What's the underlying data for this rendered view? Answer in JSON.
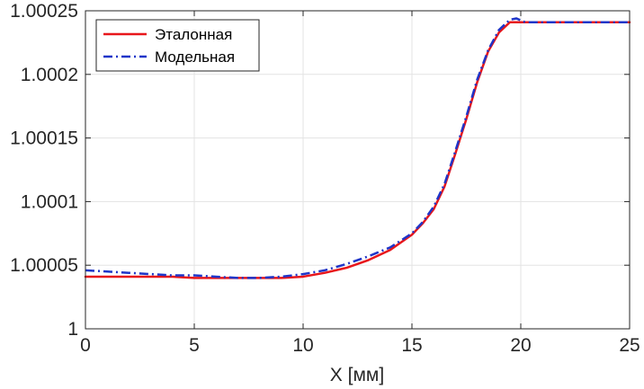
{
  "chart_data": {
    "type": "line",
    "title": "",
    "xlabel": "X [мм]",
    "ylabel": "",
    "xlim": [
      0,
      25
    ],
    "ylim": [
      1,
      1.00025
    ],
    "xticks": [
      0,
      5,
      10,
      15,
      20,
      25
    ],
    "xtick_labels": [
      "0",
      "5",
      "10",
      "15",
      "20",
      "25"
    ],
    "yticks": [
      1,
      1.00005,
      1.0001,
      1.00015,
      1.0002,
      1.00025
    ],
    "ytick_labels": [
      "1",
      "1.00005",
      "1.0001",
      "1.00015",
      "1.0002",
      "1.00025"
    ],
    "grid": true,
    "legend_position": "top-left",
    "series": [
      {
        "name": "Эталонная",
        "color": "#e8161b",
        "style": "solid",
        "x": [
          0,
          1,
          2,
          3,
          4,
          5,
          6,
          7,
          8,
          9,
          10,
          11,
          12,
          13,
          14,
          15,
          15.5,
          16,
          16.5,
          17,
          17.5,
          18,
          18.5,
          19,
          19.5,
          20,
          21,
          22,
          23,
          24,
          25
        ],
        "y": [
          1.000041,
          1.000041,
          1.000041,
          1.000041,
          1.000041,
          1.00004,
          1.00004,
          1.00004,
          1.00004,
          1.00004,
          1.000041,
          1.000044,
          1.000048,
          1.000054,
          1.000062,
          1.000074,
          1.000083,
          1.000094,
          1.000112,
          1.000138,
          1.000165,
          1.000194,
          1.000218,
          1.000233,
          1.000241,
          1.000241,
          1.000241,
          1.000241,
          1.000241,
          1.000241,
          1.000241
        ]
      },
      {
        "name": "Модельная",
        "color": "#1f35c8",
        "style": "dashdot",
        "x": [
          0,
          1,
          2,
          3,
          4,
          5,
          6,
          7,
          8,
          9,
          10,
          11,
          12,
          13,
          14,
          15,
          15.5,
          16,
          16.5,
          17,
          17.5,
          18,
          18.5,
          19,
          19.5,
          19.8,
          20.2,
          21,
          22,
          23,
          24,
          25
        ],
        "y": [
          1.000046,
          1.000045,
          1.000044,
          1.000043,
          1.000042,
          1.000042,
          1.000041,
          1.00004,
          1.00004,
          1.000041,
          1.000043,
          1.000046,
          1.000051,
          1.000057,
          1.000064,
          1.000075,
          1.000084,
          1.000096,
          1.000114,
          1.00014,
          1.000167,
          1.000196,
          1.000219,
          1.000235,
          1.000243,
          1.000244,
          1.000241,
          1.000241,
          1.000241,
          1.000241,
          1.000241,
          1.000241
        ]
      }
    ]
  }
}
